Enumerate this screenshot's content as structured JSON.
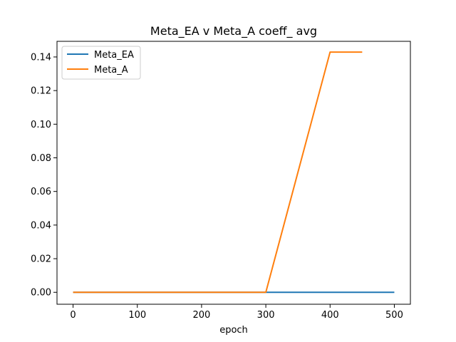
{
  "chart_data": {
    "type": "line",
    "title": "Meta_EA v Meta_A coeff_ avg",
    "xlabel": "epoch",
    "ylabel": "",
    "xlim": [
      -25,
      525
    ],
    "ylim": [
      -0.0071,
      0.1493
    ],
    "x_ticks": [
      0,
      100,
      200,
      300,
      400,
      500
    ],
    "y_ticks": [
      0.0,
      0.02,
      0.04,
      0.06,
      0.08,
      0.1,
      0.12,
      0.14
    ],
    "y_tick_labels": [
      "0.00",
      "0.02",
      "0.04",
      "0.06",
      "0.08",
      "0.10",
      "0.12",
      "0.14"
    ],
    "x_tick_labels": [
      "0",
      "100",
      "200",
      "300",
      "400",
      "500"
    ],
    "grid": false,
    "legend_position": "top-left",
    "series": [
      {
        "name": "Meta_EA",
        "color": "#1f77b4",
        "x": [
          0,
          50,
          100,
          150,
          200,
          250,
          300,
          350,
          400,
          450,
          500
        ],
        "y": [
          0,
          0,
          0,
          0,
          0,
          0,
          0,
          0,
          0,
          0,
          0
        ]
      },
      {
        "name": "Meta_A",
        "color": "#ff7f0e",
        "x": [
          0,
          50,
          100,
          150,
          200,
          250,
          300,
          400,
          450
        ],
        "y": [
          0,
          0,
          0,
          0,
          0,
          0,
          0,
          0.1429,
          0.1429
        ]
      }
    ]
  }
}
